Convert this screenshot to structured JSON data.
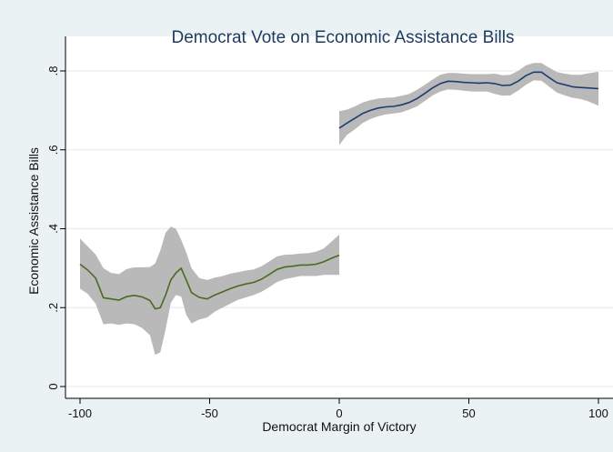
{
  "chart_data": {
    "type": "line",
    "title": "Democrat Vote on Economic Assistance Bills",
    "xlabel": "Democrat Margin of Victory",
    "ylabel": "Economic Assistance Bills",
    "xlim": [
      -100,
      100
    ],
    "ylim": [
      0,
      0.8
    ],
    "x_ticks": [
      -100,
      -50,
      0,
      50,
      100
    ],
    "x_tick_labels": [
      "-100",
      "-50",
      "0",
      "50",
      "100"
    ],
    "y_ticks": [
      0,
      0.2,
      0.4,
      0.6,
      0.8
    ],
    "y_tick_labels": [
      "0",
      ".2",
      ".4",
      ".6",
      ".8"
    ],
    "grid": "horizontal",
    "colors": {
      "background": "#eaf2f3",
      "plot_background": "#ffffff",
      "band": "#b9b9b9",
      "left_line": "#4a6b1f",
      "right_line": "#1c3d6e",
      "title": "#1e3a5f",
      "grid": "#e6eef0"
    },
    "series": [
      {
        "x": [
          -100,
          -97,
          -94,
          -91,
          -88,
          -85,
          -82,
          -79,
          -76,
          -73,
          -71,
          -69,
          -67,
          -65,
          -63,
          -61,
          -59,
          -57,
          -54,
          -51,
          -48,
          -45,
          -42,
          -39,
          -36,
          -33,
          -30,
          -27,
          -24,
          -21,
          -18,
          -15,
          -12,
          -9,
          -6,
          -3,
          0
        ],
        "y": [
          0.31,
          0.295,
          0.275,
          0.225,
          0.222,
          0.219,
          0.228,
          0.231,
          0.227,
          0.218,
          0.197,
          0.2,
          0.232,
          0.27,
          0.288,
          0.3,
          0.27,
          0.238,
          0.226,
          0.222,
          0.232,
          0.24,
          0.248,
          0.255,
          0.26,
          0.264,
          0.272,
          0.284,
          0.297,
          0.303,
          0.305,
          0.308,
          0.308,
          0.31,
          0.316,
          0.325,
          0.333
        ],
        "lower": [
          0.248,
          0.235,
          0.21,
          0.158,
          0.16,
          0.156,
          0.16,
          0.158,
          0.148,
          0.13,
          0.08,
          0.087,
          0.145,
          0.212,
          0.232,
          0.228,
          0.182,
          0.16,
          0.17,
          0.175,
          0.19,
          0.2,
          0.21,
          0.22,
          0.226,
          0.232,
          0.24,
          0.252,
          0.265,
          0.272,
          0.276,
          0.28,
          0.28,
          0.28,
          0.283,
          0.283,
          0.283
        ],
        "upper": [
          0.375,
          0.355,
          0.335,
          0.3,
          0.288,
          0.285,
          0.298,
          0.302,
          0.302,
          0.303,
          0.312,
          0.345,
          0.39,
          0.405,
          0.4,
          0.372,
          0.34,
          0.3,
          0.275,
          0.27,
          0.276,
          0.28,
          0.286,
          0.29,
          0.294,
          0.297,
          0.305,
          0.317,
          0.33,
          0.334,
          0.335,
          0.337,
          0.338,
          0.342,
          0.35,
          0.367,
          0.385
        ]
      },
      {
        "x": [
          0,
          3,
          6,
          9,
          12,
          15,
          18,
          21,
          24,
          27,
          30,
          33,
          36,
          39,
          42,
          45,
          48,
          51,
          54,
          57,
          60,
          63,
          66,
          69,
          72,
          75,
          78,
          81,
          84,
          87,
          90,
          93,
          96,
          100
        ],
        "y": [
          0.655,
          0.668,
          0.68,
          0.692,
          0.7,
          0.706,
          0.709,
          0.71,
          0.714,
          0.72,
          0.73,
          0.743,
          0.757,
          0.768,
          0.774,
          0.773,
          0.771,
          0.77,
          0.769,
          0.77,
          0.768,
          0.763,
          0.764,
          0.774,
          0.788,
          0.797,
          0.797,
          0.783,
          0.77,
          0.765,
          0.76,
          0.758,
          0.757,
          0.755
        ],
        "lower": [
          0.612,
          0.638,
          0.652,
          0.668,
          0.678,
          0.685,
          0.69,
          0.692,
          0.695,
          0.702,
          0.71,
          0.724,
          0.738,
          0.748,
          0.753,
          0.752,
          0.75,
          0.748,
          0.748,
          0.748,
          0.742,
          0.737,
          0.738,
          0.75,
          0.765,
          0.776,
          0.775,
          0.76,
          0.745,
          0.738,
          0.732,
          0.729,
          0.723,
          0.712
        ],
        "upper": [
          0.698,
          0.702,
          0.71,
          0.72,
          0.726,
          0.73,
          0.732,
          0.733,
          0.737,
          0.742,
          0.752,
          0.765,
          0.778,
          0.79,
          0.795,
          0.795,
          0.793,
          0.792,
          0.792,
          0.792,
          0.793,
          0.789,
          0.79,
          0.8,
          0.814,
          0.82,
          0.82,
          0.808,
          0.797,
          0.793,
          0.79,
          0.79,
          0.794,
          0.798
        ]
      }
    ]
  }
}
